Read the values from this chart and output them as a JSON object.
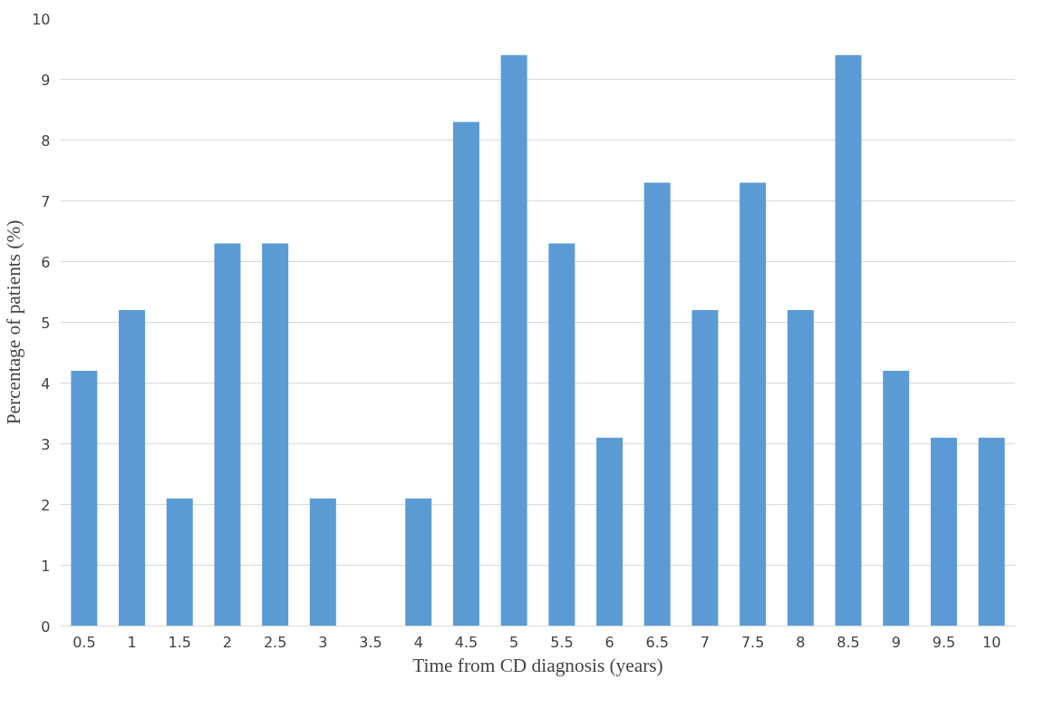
{
  "chart_data": {
    "type": "bar",
    "xlabel": "Time from CD diagnosis (years)",
    "ylabel": "Percentage of patients (%)",
    "categories": [
      "0.5",
      "1",
      "1.5",
      "2",
      "2.5",
      "3",
      "3.5",
      "4",
      "4.5",
      "5",
      "5.5",
      "6",
      "6.5",
      "7",
      "7.5",
      "8",
      "8.5",
      "9",
      "9.5",
      "10"
    ],
    "values": [
      4.2,
      5.2,
      2.1,
      6.3,
      6.3,
      2.1,
      0,
      2.1,
      8.3,
      9.4,
      6.3,
      3.1,
      7.3,
      5.2,
      7.3,
      5.2,
      9.4,
      4.2,
      3.1,
      3.1
    ],
    "color": "#5b9bd5",
    "ylim": [
      0,
      10
    ],
    "yticks": [
      0,
      1,
      2,
      3,
      4,
      5,
      6,
      7,
      8,
      9,
      10
    ],
    "grid": "y"
  }
}
